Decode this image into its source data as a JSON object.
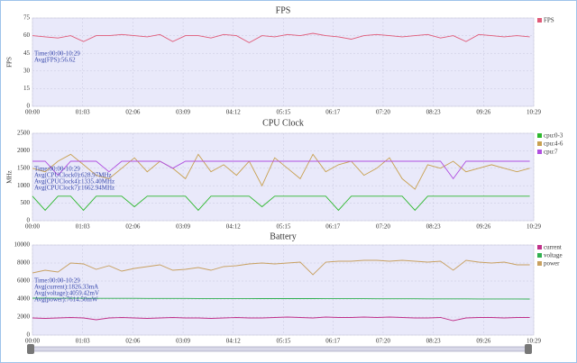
{
  "chart_data": [
    {
      "type": "line",
      "title": "FPS",
      "y_label": "FPS",
      "grid": true,
      "annotations": [
        "Time:00:00-10:29",
        "Avg(FPS):56.62"
      ],
      "x": [
        0,
        16,
        32,
        48,
        64,
        80,
        96,
        112,
        128,
        144,
        160,
        176,
        192,
        208,
        224,
        240,
        256,
        272,
        288,
        304,
        320,
        336,
        352,
        368,
        384,
        400,
        416,
        432,
        448,
        464,
        480,
        496,
        512,
        528,
        544,
        560,
        576,
        592,
        608,
        624
      ],
      "xlim": [
        0,
        629
      ],
      "xticks": [
        {
          "value": 0,
          "label": "00:00"
        },
        {
          "value": 63,
          "label": "01:03"
        },
        {
          "value": 126,
          "label": "02:06"
        },
        {
          "value": 189,
          "label": "03:09"
        },
        {
          "value": 252,
          "label": "04:12"
        },
        {
          "value": 315,
          "label": "05:15"
        },
        {
          "value": 377,
          "label": "06:17"
        },
        {
          "value": 440,
          "label": "07:20"
        },
        {
          "value": 503,
          "label": "08:23"
        },
        {
          "value": 566,
          "label": "09:26"
        },
        {
          "value": 629,
          "label": "10:29"
        }
      ],
      "ylim": [
        0,
        75
      ],
      "yticks": [
        0,
        15,
        30,
        45,
        60,
        75
      ],
      "series": [
        {
          "name": "FPS",
          "color": "#e05a78",
          "values": [
            60,
            59,
            58,
            60,
            55,
            60,
            60,
            61,
            60,
            59,
            61,
            55,
            60,
            60,
            58,
            61,
            60,
            54,
            60,
            59,
            61,
            60,
            62,
            60,
            59,
            57,
            60,
            61,
            60,
            59,
            60,
            61,
            58,
            60,
            55,
            61,
            60,
            59,
            60,
            59
          ]
        }
      ]
    },
    {
      "type": "line",
      "title": "CPU Clock",
      "y_label": "MHz",
      "grid": true,
      "annotations": [
        "Time:00:00-10:29",
        "Avg(CPUClock0):628.97MHz",
        "Avg(CPUClock4):1335.40MHz",
        "Avg(CPUClock7):1662.94MHz"
      ],
      "x": [
        0,
        16,
        32,
        48,
        64,
        80,
        96,
        112,
        128,
        144,
        160,
        176,
        192,
        208,
        224,
        240,
        256,
        272,
        288,
        304,
        320,
        336,
        352,
        368,
        384,
        400,
        416,
        432,
        448,
        464,
        480,
        496,
        512,
        528,
        544,
        560,
        576,
        592,
        608,
        624
      ],
      "xlim": [
        0,
        629
      ],
      "xticks": [
        {
          "value": 0,
          "label": "00:00"
        },
        {
          "value": 63,
          "label": "01:03"
        },
        {
          "value": 126,
          "label": "02:06"
        },
        {
          "value": 189,
          "label": "03:09"
        },
        {
          "value": 252,
          "label": "04:12"
        },
        {
          "value": 315,
          "label": "05:15"
        },
        {
          "value": 377,
          "label": "06:17"
        },
        {
          "value": 440,
          "label": "07:20"
        },
        {
          "value": 503,
          "label": "08:23"
        },
        {
          "value": 566,
          "label": "09:26"
        },
        {
          "value": 629,
          "label": "10:29"
        }
      ],
      "ylim": [
        0,
        2500
      ],
      "yticks": [
        0,
        500,
        1000,
        1500,
        2000,
        2500
      ],
      "series": [
        {
          "name": "cpu:0-3",
          "color": "#2db82d",
          "values": [
            700,
            300,
            700,
            700,
            300,
            700,
            700,
            700,
            400,
            700,
            700,
            700,
            700,
            300,
            700,
            700,
            700,
            700,
            400,
            700,
            700,
            700,
            700,
            700,
            300,
            700,
            700,
            700,
            700,
            700,
            300,
            700,
            700,
            700,
            700,
            700,
            700,
            700,
            700,
            700
          ]
        },
        {
          "name": "cpu:4-6",
          "color": "#c8a050",
          "values": [
            1500,
            1400,
            1700,
            1900,
            1600,
            1300,
            1200,
            1500,
            1800,
            1400,
            1700,
            1500,
            1200,
            1900,
            1400,
            1600,
            1300,
            1700,
            1000,
            1800,
            1500,
            1200,
            1900,
            1400,
            1600,
            1700,
            1300,
            1500,
            1800,
            1200,
            900,
            1600,
            1500,
            1700,
            1400,
            1500,
            1600,
            1500,
            1400,
            1500
          ]
        },
        {
          "name": "cpu:7",
          "color": "#b050e0",
          "values": [
            1700,
            1700,
            1300,
            1700,
            1700,
            1700,
            1400,
            1700,
            1700,
            1700,
            1700,
            1500,
            1700,
            1700,
            1700,
            1700,
            1700,
            1700,
            1700,
            1700,
            1700,
            1700,
            1700,
            1700,
            1700,
            1700,
            1700,
            1700,
            1700,
            1700,
            1700,
            1700,
            1700,
            1200,
            1700,
            1700,
            1700,
            1700,
            1700,
            1700
          ]
        }
      ]
    },
    {
      "type": "line",
      "title": "Battery",
      "grid": true,
      "annotations": [
        "Time:00:00-10:29",
        "Avg(current):1826.33mA",
        "Avg(voltage):4059.42mV",
        "Avg(power):7614.50mW"
      ],
      "x": [
        0,
        16,
        32,
        48,
        64,
        80,
        96,
        112,
        128,
        144,
        160,
        176,
        192,
        208,
        224,
        240,
        256,
        272,
        288,
        304,
        320,
        336,
        352,
        368,
        384,
        400,
        416,
        432,
        448,
        464,
        480,
        496,
        512,
        528,
        544,
        560,
        576,
        592,
        608,
        624
      ],
      "xlim": [
        0,
        629
      ],
      "xticks": [
        {
          "value": 0,
          "label": "00:00"
        },
        {
          "value": 63,
          "label": "01:03"
        },
        {
          "value": 126,
          "label": "02:06"
        },
        {
          "value": 189,
          "label": "03:09"
        },
        {
          "value": 252,
          "label": "04:12"
        },
        {
          "value": 315,
          "label": "05:15"
        },
        {
          "value": 377,
          "label": "06:17"
        },
        {
          "value": 440,
          "label": "07:20"
        },
        {
          "value": 503,
          "label": "08:23"
        },
        {
          "value": 566,
          "label": "09:26"
        },
        {
          "value": 629,
          "label": "10:29"
        }
      ],
      "ylim": [
        0,
        10000
      ],
      "yticks": [
        0,
        2000,
        4000,
        6000,
        8000,
        10000
      ],
      "series": [
        {
          "name": "current",
          "color": "#c0308a",
          "values": [
            1900,
            1850,
            1900,
            1950,
            1900,
            1700,
            1900,
            1950,
            1900,
            1850,
            1900,
            1950,
            1900,
            1900,
            1850,
            1900,
            1950,
            1900,
            1900,
            1950,
            2000,
            1950,
            1900,
            2000,
            1950,
            1950,
            2000,
            1950,
            2000,
            1950,
            1900,
            1900,
            1950,
            1600,
            1900,
            1950,
            1950,
            1900,
            1950,
            1950
          ]
        },
        {
          "name": "voltage",
          "color": "#30b050",
          "values": [
            4100,
            4100,
            4090,
            4090,
            4090,
            4080,
            4080,
            4080,
            4080,
            4070,
            4070,
            4070,
            4070,
            4060,
            4060,
            4060,
            4060,
            4060,
            4050,
            4050,
            4050,
            4050,
            4050,
            4040,
            4040,
            4040,
            4040,
            4030,
            4030,
            4030,
            4030,
            4020,
            4020,
            4020,
            4020,
            4010,
            4010,
            4010,
            4010,
            4000
          ]
        },
        {
          "name": "power",
          "color": "#c8a060",
          "values": [
            6900,
            7200,
            7000,
            8000,
            7900,
            7300,
            7700,
            7100,
            7400,
            7600,
            7800,
            7200,
            7300,
            7500,
            7200,
            7600,
            7700,
            7900,
            8000,
            7900,
            8000,
            8100,
            6700,
            8100,
            8200,
            8200,
            8300,
            8300,
            8200,
            8300,
            8200,
            8100,
            8200,
            7200,
            8300,
            8100,
            8000,
            8100,
            7800,
            7800
          ]
        }
      ]
    }
  ]
}
